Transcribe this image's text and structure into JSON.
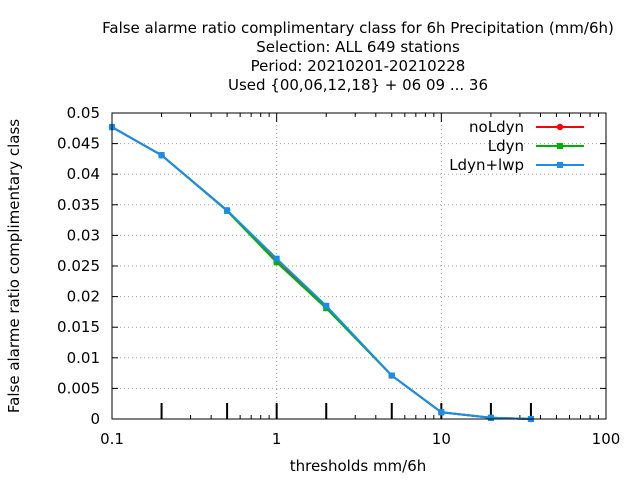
{
  "chart_data": {
    "type": "line",
    "title_lines": [
      "False alarme ratio complimentary class  for 6h Precipitation (mm/6h)",
      "Selection: ALL    649 stations",
      "Period: 20210201-20210228",
      "Used {00,06,12,18} + 06 09 ... 36"
    ],
    "xlabel": "thresholds mm/6h",
    "ylabel": "False alarme ratio complimentary class",
    "xscale": "log",
    "xlim": [
      0.1,
      100
    ],
    "ylim": [
      0,
      0.05
    ],
    "xticks": [
      0.1,
      1,
      10,
      100
    ],
    "xtick_labels": [
      "0.1",
      "1",
      "10",
      "100"
    ],
    "yticks": [
      0,
      0.005,
      0.01,
      0.015,
      0.02,
      0.025,
      0.03,
      0.035,
      0.04,
      0.045,
      0.05
    ],
    "ytick_labels": [
      "0",
      "0.005",
      "0.01",
      "0.015",
      "0.02",
      "0.025",
      "0.03",
      "0.035",
      "0.04",
      "0.045",
      "0.05"
    ],
    "grid": true,
    "legend_position": "top-right",
    "x": [
      0.1,
      0.2,
      0.5,
      1,
      2,
      5,
      10,
      20,
      35
    ],
    "series": [
      {
        "name": "noLdyn",
        "color": "#ff0000",
        "marker": "circle",
        "values": [
          0.0477,
          0.0431,
          0.0341,
          0.0257,
          0.0183,
          0.0071,
          0.0011,
          0.0002,
          0.0
        ]
      },
      {
        "name": "Ldyn",
        "color": "#00b000",
        "marker": "square",
        "values": [
          0.0477,
          0.0431,
          0.034,
          0.0256,
          0.0181,
          0.0071,
          0.0011,
          0.0002,
          0.0
        ]
      },
      {
        "name": "Ldyn+lwp",
        "color": "#1a8cf0",
        "marker": "square",
        "values": [
          0.0477,
          0.0431,
          0.0341,
          0.0262,
          0.0185,
          0.0071,
          0.0011,
          0.0002,
          0.0
        ]
      }
    ],
    "rug_x": [
      0.2,
      0.5,
      1,
      2,
      5,
      10,
      20,
      35
    ]
  }
}
